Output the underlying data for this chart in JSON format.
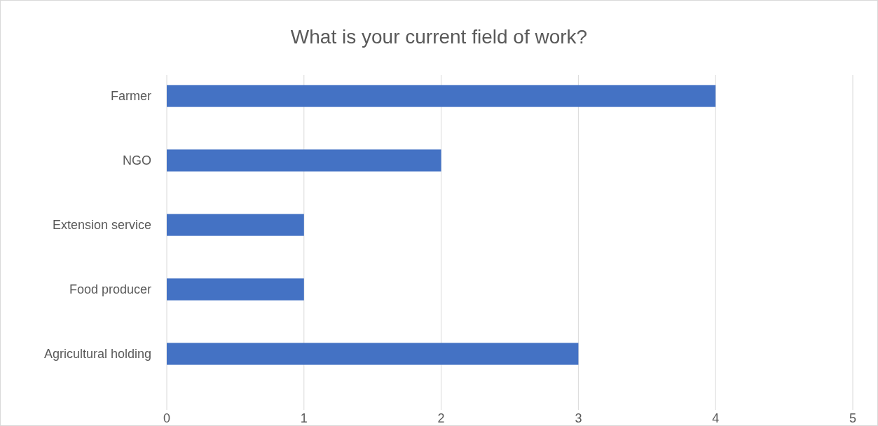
{
  "chart_data": {
    "type": "bar",
    "orientation": "horizontal",
    "title": "What is your current field of work?",
    "categories": [
      "Farmer",
      "NGO",
      "Extension service",
      "Food producer",
      "Agricultural holding"
    ],
    "values": [
      4,
      2,
      1,
      1,
      3
    ],
    "color": "#4472c4",
    "xlim": [
      0,
      5
    ],
    "xticks": [
      0,
      1,
      2,
      3,
      4,
      5
    ],
    "grid": "x"
  }
}
